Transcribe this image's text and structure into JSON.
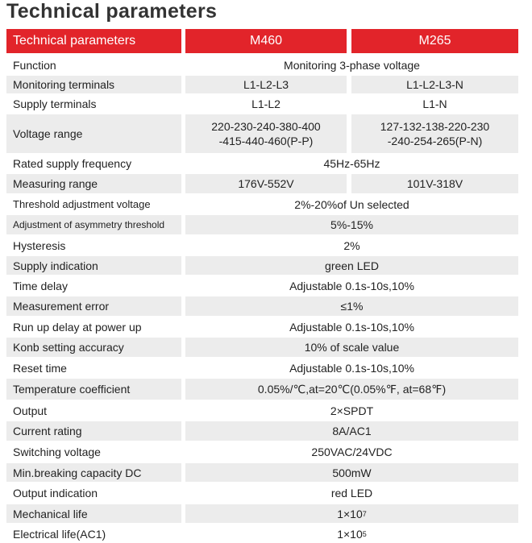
{
  "header": {
    "title": "Technical parameters"
  },
  "table": {
    "columns": [
      "Technical parameters",
      "M460",
      "M265"
    ],
    "rows": [
      {
        "label": "Function",
        "cells": [
          "Monitoring 3-phase voltage"
        ]
      },
      {
        "label": "Monitoring terminals",
        "cells": [
          "L1-L2-L3",
          "L1-L2-L3-N"
        ]
      },
      {
        "label": "Supply terminals",
        "cells": [
          "L1-L2",
          "L1-N"
        ]
      },
      {
        "label": "Voltage range",
        "cells": [
          [
            "220-230-240-380-400",
            "-415-440-460(P-P)"
          ],
          [
            "127-132-138-220-230",
            "-240-254-265(P-N)"
          ]
        ]
      },
      {
        "label": "Rated supply frequency",
        "cells": [
          "45Hz-65Hz"
        ]
      },
      {
        "label": "Measuring range",
        "cells": [
          "176V-552V",
          "101V-318V"
        ]
      },
      {
        "label": "Threshold adjustment voltage",
        "cells": [
          "2%-20%of Un selected"
        ]
      },
      {
        "label": "Adjustment of asymmetry threshold",
        "cells": [
          "5%-15%"
        ]
      },
      {
        "label": "Hysteresis",
        "cells": [
          "2%"
        ]
      },
      {
        "label": "Supply indication",
        "cells": [
          "green LED"
        ]
      },
      {
        "label": "Time delay",
        "cells": [
          "Adjustable 0.1s-10s,10%"
        ]
      },
      {
        "label": "Measurement error",
        "cells": [
          "≤1%"
        ]
      },
      {
        "label": "Run up delay at power up",
        "cells": [
          "Adjustable 0.1s-10s,10%"
        ]
      },
      {
        "label": "Konb setting accuracy",
        "cells": [
          "10% of scale value"
        ]
      },
      {
        "label": "Reset time",
        "cells": [
          "Adjustable 0.1s-10s,10%"
        ]
      },
      {
        "label": "Temperature coefficient",
        "cells": [
          "0.05%/℃,at=20℃(0.05%℉, at=68℉)"
        ]
      },
      {
        "label": "Output",
        "cells": [
          "2×SPDT"
        ]
      },
      {
        "label": "Current rating",
        "cells": [
          "8A/AC1"
        ]
      },
      {
        "label": "Switching voltage",
        "cells": [
          "250VAC/24VDC"
        ]
      },
      {
        "label": "Min.breaking capacity DC",
        "cells": [
          "500mW"
        ]
      },
      {
        "label": "Output indication",
        "cells": [
          "red LED"
        ]
      },
      {
        "label": "Mechanical life",
        "cells": [
          "1×10"
        ],
        "sup": "7"
      },
      {
        "label": "Electrical life(AC1)",
        "cells": [
          "1×10"
        ],
        "sup": "5"
      }
    ]
  }
}
